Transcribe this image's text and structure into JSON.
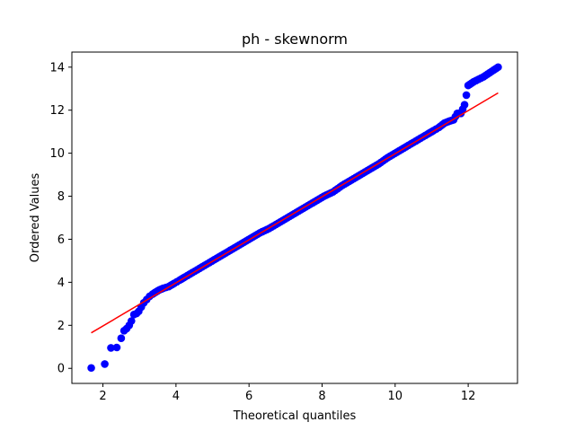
{
  "chart_data": {
    "type": "scatter",
    "title": "ph - skewnorm",
    "xlabel": "Theoretical quantiles",
    "ylabel": "Ordered Values",
    "xlim": [
      1.15,
      13.35
    ],
    "ylim": [
      -0.7,
      14.7
    ],
    "xticks": [
      2,
      4,
      6,
      8,
      10,
      12
    ],
    "yticks": [
      0,
      2,
      4,
      6,
      8,
      10,
      12,
      14
    ],
    "grid": false,
    "series": [
      {
        "kind": "points",
        "color": "#0000ff",
        "x": [
          1.68,
          2.05,
          2.22,
          2.38,
          2.5,
          2.58,
          2.65,
          2.72,
          2.78,
          2.85,
          2.92,
          2.98,
          3.05,
          3.12,
          3.2,
          3.28,
          3.36,
          3.45,
          3.55,
          3.65,
          3.8,
          3.95,
          4.1,
          4.25,
          4.45,
          4.65,
          4.85,
          5.05,
          5.3,
          5.55,
          5.8,
          6.05,
          6.3,
          6.55,
          6.8,
          7.05,
          7.3,
          7.55,
          7.8,
          8.05,
          8.3,
          8.55,
          8.8,
          9.05,
          9.3,
          9.55,
          9.8,
          10.05,
          10.3,
          10.5,
          10.7,
          10.9,
          11.05,
          11.2,
          11.35,
          11.5,
          11.6,
          11.7,
          11.8,
          11.9,
          12.0,
          12.15,
          12.42,
          12.82
        ],
        "y": [
          0.02,
          0.2,
          0.95,
          0.97,
          1.4,
          1.75,
          1.85,
          2.0,
          2.2,
          2.5,
          2.55,
          2.65,
          2.85,
          3.05,
          3.2,
          3.35,
          3.45,
          3.55,
          3.65,
          3.72,
          3.8,
          3.95,
          4.1,
          4.25,
          4.45,
          4.65,
          4.85,
          5.05,
          5.3,
          5.55,
          5.8,
          6.05,
          6.3,
          6.5,
          6.75,
          7.0,
          7.25,
          7.5,
          7.75,
          8.0,
          8.2,
          8.5,
          8.75,
          9.0,
          9.25,
          9.5,
          9.8,
          10.05,
          10.3,
          10.5,
          10.7,
          10.9,
          11.05,
          11.2,
          11.4,
          11.5,
          11.55,
          11.85,
          11.85,
          12.25,
          13.15,
          13.32,
          13.55,
          14.0
        ]
      },
      {
        "kind": "line",
        "color": "#ff0000",
        "x": [
          1.68,
          12.82
        ],
        "y": [
          1.65,
          12.8
        ]
      }
    ]
  }
}
